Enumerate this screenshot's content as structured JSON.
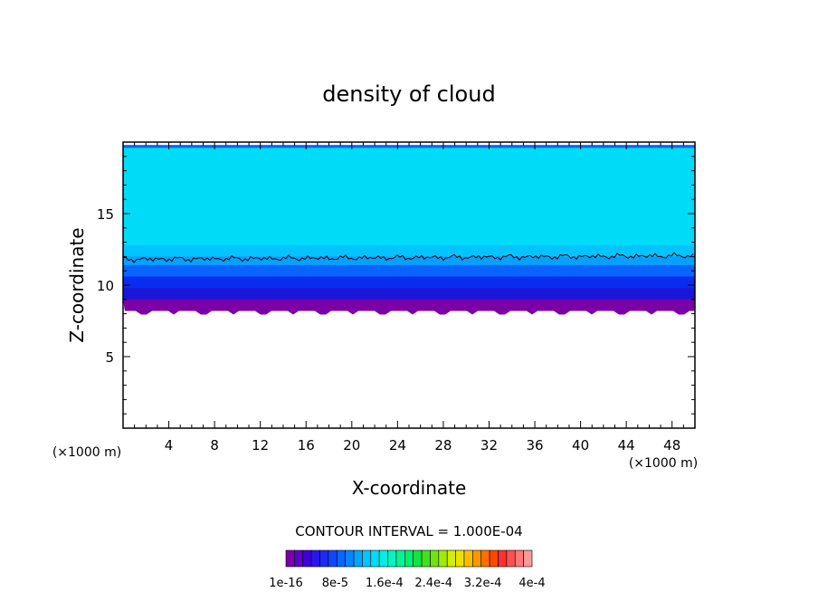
{
  "chart_data": {
    "type": "heatmap",
    "title": "density of cloud",
    "xlabel": "X-coordinate",
    "ylabel": "Z-coordinate",
    "x_unit": "(×1000 m)",
    "y_unit": "(×1000 m)",
    "xlim": [
      0,
      50
    ],
    "ylim": [
      0,
      20
    ],
    "x_ticks": [
      4,
      8,
      12,
      16,
      20,
      24,
      28,
      32,
      36,
      40,
      44,
      48
    ],
    "y_ticks": [
      5,
      10,
      15
    ],
    "contour_interval": "CONTOUR INTERVAL = 1.000E-04",
    "colorbar": {
      "labels": [
        "1e-16",
        "8e-5",
        "1.6e-4",
        "2.4e-4",
        "3.2e-4",
        "4e-4"
      ],
      "colors": [
        "#7a00a8",
        "#5a00c8",
        "#3c00dc",
        "#2a16ec",
        "#1a2cf8",
        "#1046ff",
        "#0a64ff",
        "#0884ff",
        "#06a4ff",
        "#04c4ff",
        "#00dcf8",
        "#00eee4",
        "#00f4c0",
        "#00f498",
        "#00ee70",
        "#10e640",
        "#40e020",
        "#70e410",
        "#a0ec08",
        "#d0f000",
        "#f0e000",
        "#ffc000",
        "#ff9800",
        "#ff7000",
        "#ff4800",
        "#ff3030",
        "#ff5050",
        "#ff7878",
        "#ff9898"
      ]
    },
    "bands": [
      {
        "z_from": 19.6,
        "z_to": 19.8,
        "value": "8e-5"
      },
      {
        "z_from": 12.8,
        "z_to": 19.6,
        "value": "1.6e-4"
      },
      {
        "z_from": 12.0,
        "z_to": 12.8,
        "value": "1.2e-4"
      },
      {
        "z_from": 11.4,
        "z_to": 12.0,
        "value": "1.0e-4"
      },
      {
        "z_from": 10.6,
        "z_to": 11.4,
        "value": "8e-5"
      },
      {
        "z_from": 9.8,
        "z_to": 10.6,
        "value": "6e-5"
      },
      {
        "z_from": 9.0,
        "z_to": 9.8,
        "value": "4e-5"
      },
      {
        "z_from": 8.2,
        "z_to": 9.0,
        "value": "1e-16"
      }
    ],
    "contour_line_level_z": 11.8
  }
}
